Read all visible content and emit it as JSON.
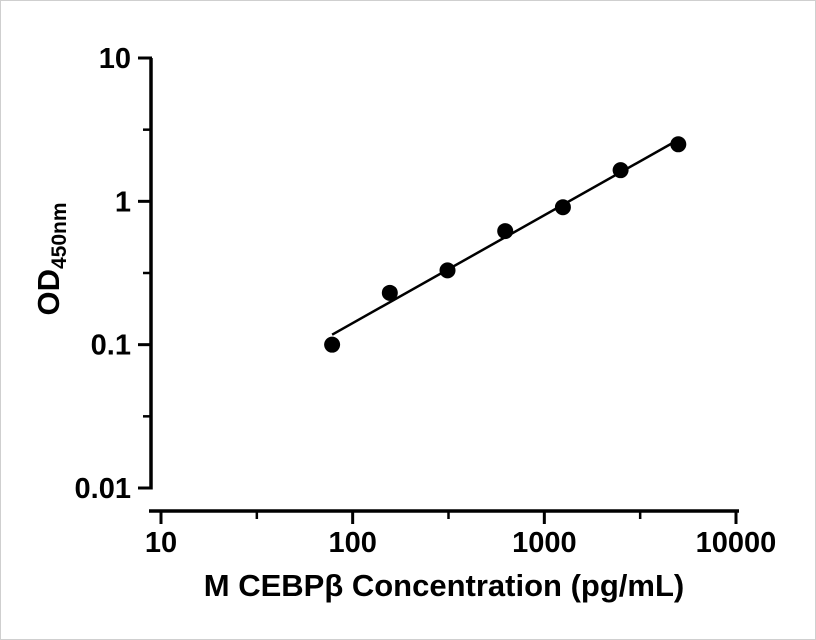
{
  "figure": {
    "background_color": "#ffffff",
    "axis_color": "#000000"
  },
  "chart_data": {
    "type": "scatter",
    "title": "",
    "xlabel": "M CEBPβ Concentration (pg/mL)",
    "ylabel": "OD",
    "ylabel_subscript": "450nm",
    "x_scale": "log",
    "y_scale": "log",
    "xlim": [
      10,
      10000
    ],
    "ylim": [
      0.01,
      10
    ],
    "grid": false,
    "legend": "none",
    "marker_color": "#000000",
    "line_color": "#000000",
    "x_ticks": [
      {
        "value": 10,
        "label": "10"
      },
      {
        "value": 100,
        "label": "100"
      },
      {
        "value": 1000,
        "label": "1000"
      },
      {
        "value": 10000,
        "label": "10000"
      }
    ],
    "y_ticks": [
      {
        "value": 10,
        "label": "10"
      },
      {
        "value": 1,
        "label": "1"
      },
      {
        "value": 0.1,
        "label": "0.1"
      },
      {
        "value": 0.01,
        "label": "0.01"
      }
    ],
    "points": [
      {
        "x": 78.125,
        "y": 0.1
      },
      {
        "x": 156.25,
        "y": 0.23
      },
      {
        "x": 312.5,
        "y": 0.33
      },
      {
        "x": 625,
        "y": 0.62
      },
      {
        "x": 1250,
        "y": 0.91
      },
      {
        "x": 2500,
        "y": 1.65
      },
      {
        "x": 5000,
        "y": 2.5
      }
    ],
    "trendline": "linear fit in log-log space through data range"
  }
}
